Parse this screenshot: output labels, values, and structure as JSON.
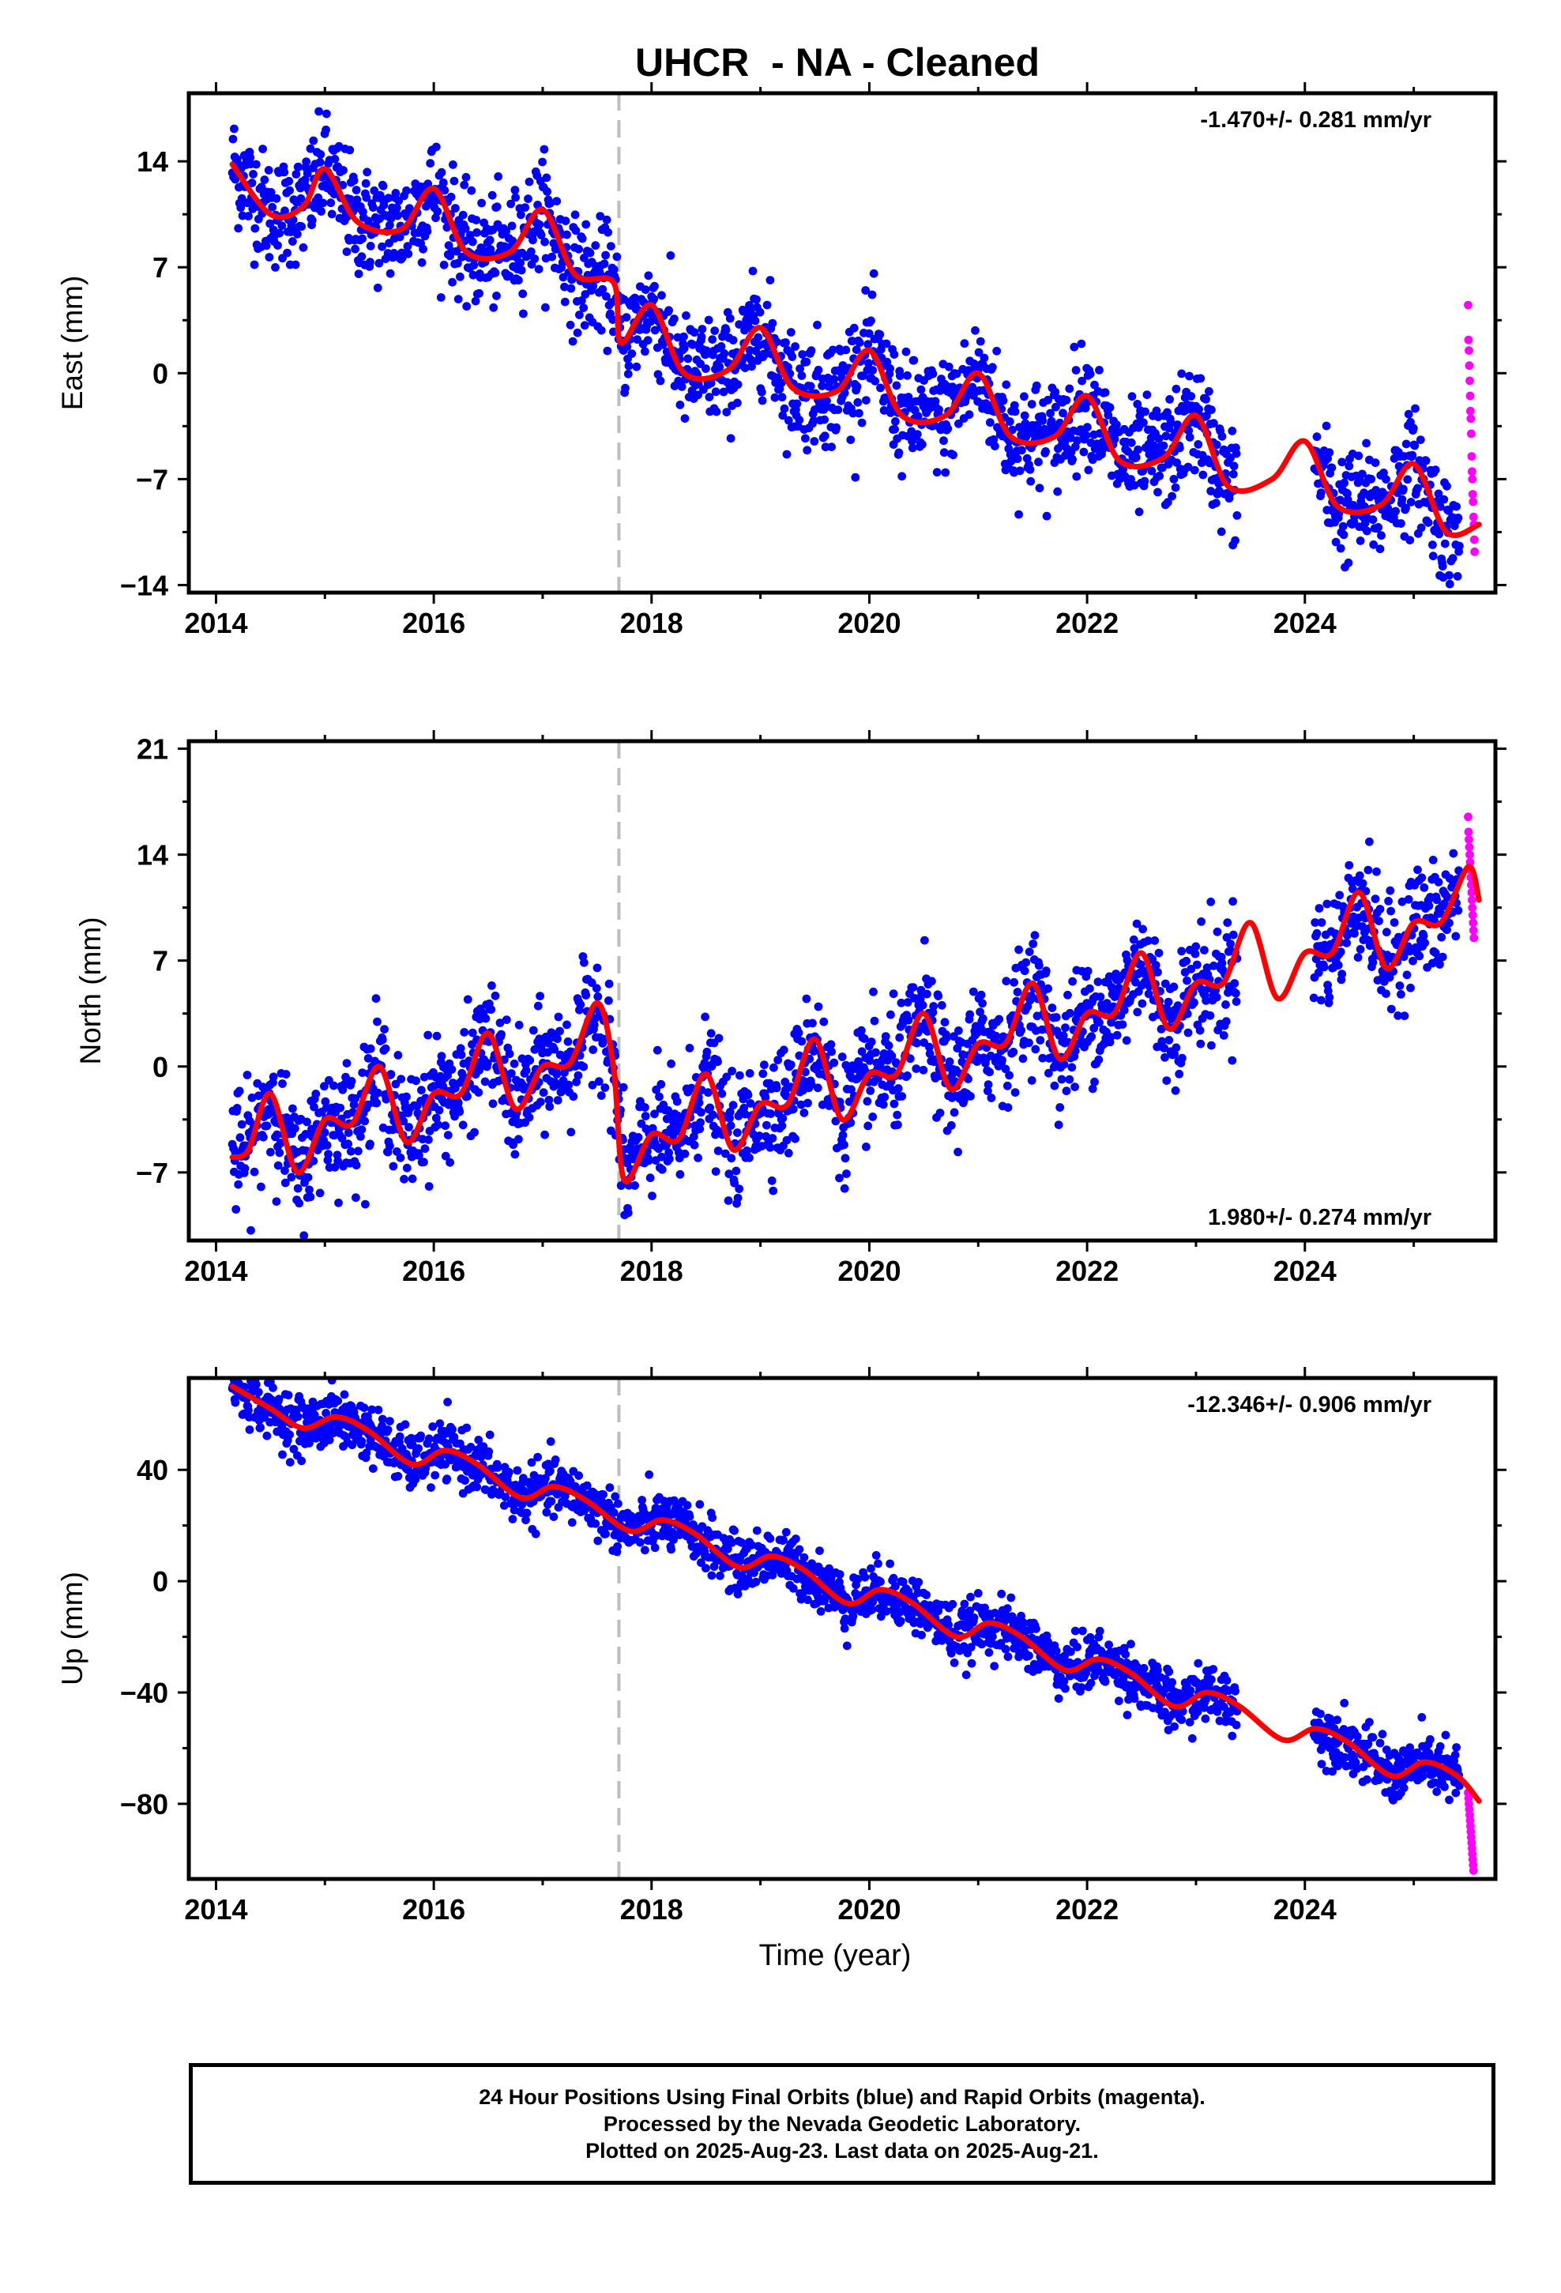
{
  "chart_data": {
    "title": "UHCR  - NA - Cleaned",
    "type": "scatter",
    "xlabel": "Time (year)",
    "xlim": [
      2013.75,
      2025.75
    ],
    "xticks": [
      "2014",
      "2016",
      "2018",
      "2020",
      "2022",
      "2024"
    ],
    "event_line_year": 2017.7,
    "series_names": {
      "final": "Final Orbits (blue)",
      "rapid": "Rapid Orbits (magenta)",
      "model": "fit"
    },
    "colors": {
      "final": "#0000ff",
      "rapid": "#ff00ff",
      "model": "#ff0000",
      "event": "#bdbdbd"
    },
    "panels": [
      {
        "id": "east",
        "ylabel": "East (mm)",
        "ylim": [
          -14.5,
          18.5
        ],
        "yticks": [
          "14",
          "7",
          "0",
          "-7",
          "-14"
        ],
        "rate_text": "-1.470+/- 0.281 mm/yr",
        "rate_position": "top-right",
        "data_range": [
          2014.15,
          2025.42
        ],
        "gaps": [
          [
            2023.38,
            2024.08
          ]
        ],
        "noise": 1.8,
        "model_points": [
          [
            2014.15,
            13.8
          ],
          [
            2014.5,
            10.5
          ],
          [
            2014.8,
            11.0
          ],
          [
            2015.0,
            13.5
          ],
          [
            2015.3,
            10.0
          ],
          [
            2015.7,
            9.5
          ],
          [
            2016.0,
            12.2
          ],
          [
            2016.3,
            8.0
          ],
          [
            2016.7,
            8.0
          ],
          [
            2017.0,
            10.8
          ],
          [
            2017.3,
            6.5
          ],
          [
            2017.65,
            6.0
          ],
          [
            2017.72,
            2.0
          ],
          [
            2018.0,
            4.5
          ],
          [
            2018.3,
            0.0
          ],
          [
            2018.7,
            0.2
          ],
          [
            2019.0,
            3.0
          ],
          [
            2019.3,
            -1.0
          ],
          [
            2019.7,
            -1.2
          ],
          [
            2020.0,
            1.5
          ],
          [
            2020.3,
            -2.8
          ],
          [
            2020.7,
            -2.8
          ],
          [
            2021.0,
            0.0
          ],
          [
            2021.3,
            -4.2
          ],
          [
            2021.7,
            -4.2
          ],
          [
            2022.0,
            -1.5
          ],
          [
            2022.3,
            -5.8
          ],
          [
            2022.7,
            -5.6
          ],
          [
            2023.0,
            -2.8
          ],
          [
            2023.3,
            -7.5
          ],
          [
            2023.7,
            -7.0
          ],
          [
            2024.0,
            -4.5
          ],
          [
            2024.3,
            -8.8
          ],
          [
            2024.7,
            -8.7
          ],
          [
            2025.0,
            -6.0
          ],
          [
            2025.3,
            -10.5
          ],
          [
            2025.6,
            -10.0
          ]
        ],
        "rapid_values": [
          4.5,
          2.2,
          1.5,
          0.5,
          -0.5,
          -1.5,
          -2.5,
          -3.0,
          -4.0,
          -5.5,
          -6.5,
          -7.0,
          -8.0,
          -8.5,
          -9.5,
          -10.0,
          -11.0,
          -11.8
        ]
      },
      {
        "id": "north",
        "ylabel": "North (mm)",
        "ylim": [
          -11.5,
          21.5
        ],
        "yticks": [
          "21",
          "14",
          "7",
          "0",
          "-7"
        ],
        "rate_text": "1.980+/- 0.274 mm/yr",
        "rate_position": "bottom-right",
        "data_range": [
          2014.15,
          2025.42
        ],
        "gaps": [
          [
            2023.38,
            2024.08
          ]
        ],
        "noise": 1.9,
        "model_points": [
          [
            2014.15,
            -6.0
          ],
          [
            2014.3,
            -5.5
          ],
          [
            2014.5,
            -1.8
          ],
          [
            2014.75,
            -7.0
          ],
          [
            2015.0,
            -3.5
          ],
          [
            2015.25,
            -3.8
          ],
          [
            2015.5,
            0.0
          ],
          [
            2015.75,
            -5.0
          ],
          [
            2016.0,
            -1.8
          ],
          [
            2016.25,
            -1.8
          ],
          [
            2016.5,
            2.2
          ],
          [
            2016.75,
            -2.8
          ],
          [
            2017.0,
            0.0
          ],
          [
            2017.25,
            0.2
          ],
          [
            2017.5,
            4.2
          ],
          [
            2017.65,
            0.0
          ],
          [
            2017.75,
            -7.5
          ],
          [
            2018.0,
            -4.5
          ],
          [
            2018.25,
            -4.8
          ],
          [
            2018.5,
            -0.5
          ],
          [
            2018.75,
            -5.5
          ],
          [
            2019.0,
            -2.5
          ],
          [
            2019.25,
            -2.5
          ],
          [
            2019.5,
            1.8
          ],
          [
            2019.75,
            -3.5
          ],
          [
            2020.0,
            -0.5
          ],
          [
            2020.25,
            -0.5
          ],
          [
            2020.5,
            3.5
          ],
          [
            2020.75,
            -1.5
          ],
          [
            2021.0,
            1.5
          ],
          [
            2021.25,
            1.5
          ],
          [
            2021.5,
            5.5
          ],
          [
            2021.75,
            0.5
          ],
          [
            2022.0,
            3.5
          ],
          [
            2022.25,
            3.5
          ],
          [
            2022.5,
            7.5
          ],
          [
            2022.75,
            2.5
          ],
          [
            2023.0,
            5.5
          ],
          [
            2023.25,
            5.5
          ],
          [
            2023.5,
            9.5
          ],
          [
            2023.75,
            4.5
          ],
          [
            2024.0,
            7.5
          ],
          [
            2024.25,
            7.5
          ],
          [
            2024.5,
            11.5
          ],
          [
            2024.75,
            6.5
          ],
          [
            2025.0,
            9.5
          ],
          [
            2025.25,
            9.5
          ],
          [
            2025.5,
            13.2
          ],
          [
            2025.6,
            11.0
          ]
        ],
        "rapid_values": [
          16.5,
          15.5,
          15.0,
          14.5,
          14.0,
          13.5,
          13.0,
          12.5,
          12.0,
          11.5,
          11.0,
          10.5,
          10.0,
          9.5,
          9.0,
          8.5
        ]
      },
      {
        "id": "up",
        "ylabel": "Up (mm)",
        "ylim": [
          -107,
          73
        ],
        "yticks": [
          "40",
          "0",
          "-40",
          "-80"
        ],
        "rate_text": "-12.346+/- 0.906 mm/yr",
        "rate_position": "top-right",
        "data_range": [
          2014.15,
          2025.42
        ],
        "gaps": [
          [
            2023.38,
            2024.08
          ]
        ],
        "noise": 5.0,
        "model_points": [
          [
            2014.15,
            70
          ],
          [
            2014.5,
            62
          ],
          [
            2014.8,
            55
          ],
          [
            2015.1,
            59
          ],
          [
            2015.4,
            54
          ],
          [
            2015.8,
            42
          ],
          [
            2016.1,
            47
          ],
          [
            2016.4,
            42
          ],
          [
            2016.8,
            30
          ],
          [
            2017.1,
            34
          ],
          [
            2017.4,
            29
          ],
          [
            2017.8,
            18
          ],
          [
            2018.1,
            22
          ],
          [
            2018.4,
            17
          ],
          [
            2018.8,
            5
          ],
          [
            2019.1,
            9
          ],
          [
            2019.4,
            4
          ],
          [
            2019.8,
            -8
          ],
          [
            2020.1,
            -3
          ],
          [
            2020.4,
            -8
          ],
          [
            2020.8,
            -20
          ],
          [
            2021.1,
            -15
          ],
          [
            2021.4,
            -20
          ],
          [
            2021.8,
            -32
          ],
          [
            2022.1,
            -28
          ],
          [
            2022.4,
            -33
          ],
          [
            2022.8,
            -45
          ],
          [
            2023.1,
            -40
          ],
          [
            2023.4,
            -45
          ],
          [
            2023.8,
            -57
          ],
          [
            2024.1,
            -53
          ],
          [
            2024.4,
            -58
          ],
          [
            2024.8,
            -70
          ],
          [
            2025.1,
            -65
          ],
          [
            2025.4,
            -70
          ],
          [
            2025.6,
            -79
          ]
        ],
        "rapid_values": [
          -76,
          -78,
          -80,
          -82,
          -84,
          -86,
          -88,
          -90,
          -92,
          -94,
          -96,
          -98,
          -100,
          -102,
          -104
        ]
      }
    ]
  },
  "footer": {
    "line1": "24 Hour Positions Using Final Orbits (blue) and Rapid Orbits (magenta).",
    "line2": "Processed by the Nevada Geodetic Laboratory.",
    "line3": "Plotted on 2025-Aug-23. Last data on 2025-Aug-21."
  }
}
